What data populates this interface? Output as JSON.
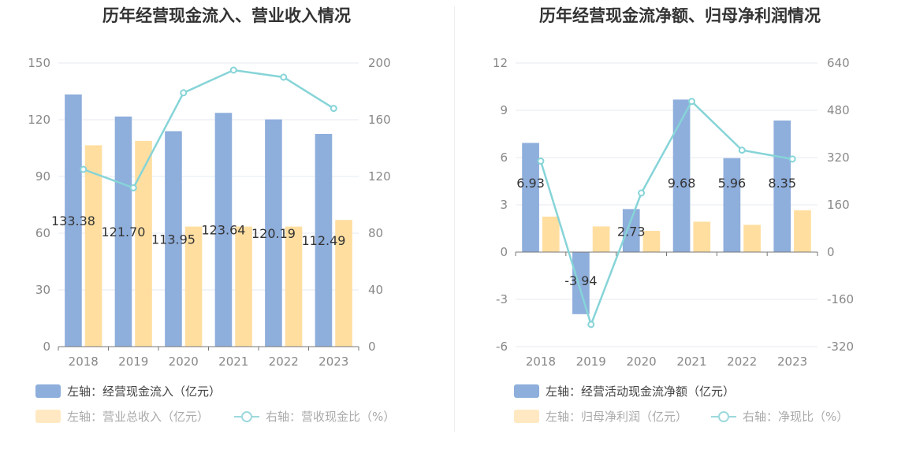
{
  "charts": [
    {
      "title": "历年经营现金流入、营业收入情况",
      "legend": {
        "series1": "左轴：经营现金流入（亿元）",
        "series2": "左轴：营业总收入（亿元）",
        "series3": "右轴：营收现金比（%）"
      }
    },
    {
      "title": "历年经营现金流净额、归母净利润情况",
      "legend": {
        "series1": "左轴：经营活动现金流净额（亿元）",
        "series2": "左轴：归母净利润（亿元）",
        "series3": "右轴：净现比（%）"
      }
    }
  ],
  "colors": {
    "bar_primary": "#8eaedc",
    "bar_secondary": "#ffdea0",
    "line": "#86d4d8"
  },
  "chart_data": [
    {
      "type": "bar",
      "title": "历年经营现金流入、营业收入情况",
      "categories": [
        "2018",
        "2019",
        "2020",
        "2021",
        "2022",
        "2023"
      ],
      "left_axis": {
        "min": 0,
        "max": 150,
        "ticks": [
          0,
          30,
          60,
          90,
          120,
          150
        ]
      },
      "right_axis": {
        "min": 0,
        "max": 200,
        "ticks": [
          0,
          40,
          80,
          120,
          160,
          200
        ]
      },
      "series": [
        {
          "name": "左轴：经营现金流入（亿元）",
          "axis": "left",
          "kind": "bar",
          "values": [
            133.38,
            121.7,
            113.95,
            123.64,
            120.19,
            112.49
          ],
          "labels": [
            "133.38",
            "121.70",
            "113.95",
            "123.64",
            "120.19",
            "112.49"
          ]
        },
        {
          "name": "左轴：营业总收入（亿元）",
          "axis": "left",
          "kind": "bar",
          "values": [
            106.5,
            108.8,
            63.5,
            63.5,
            63.5,
            67.0
          ]
        },
        {
          "name": "右轴：营收现金比（%）",
          "axis": "right",
          "kind": "line",
          "values": [
            125,
            112,
            179,
            195,
            190,
            168
          ]
        }
      ],
      "grid": true,
      "legend_position": "bottom-left"
    },
    {
      "type": "bar",
      "title": "历年经营现金流净额、归母净利润情况",
      "categories": [
        "2018",
        "2019",
        "2020",
        "2021",
        "2022",
        "2023"
      ],
      "left_axis": {
        "min": -6,
        "max": 12,
        "ticks": [
          -6,
          -3,
          0,
          3,
          6,
          9,
          12
        ]
      },
      "right_axis": {
        "min": -320,
        "max": 640,
        "ticks": [
          -320,
          -160,
          0,
          160,
          320,
          480,
          640
        ]
      },
      "series": [
        {
          "name": "左轴：经营活动现金流净额（亿元）",
          "axis": "left",
          "kind": "bar",
          "values": [
            6.93,
            -3.94,
            2.73,
            9.68,
            5.96,
            8.35
          ],
          "labels": [
            "6.93",
            "-3.94",
            "2.73",
            "9.68",
            "5.96",
            "8.35"
          ]
        },
        {
          "name": "左轴：归母净利润（亿元）",
          "axis": "left",
          "kind": "bar",
          "values": [
            2.25,
            1.63,
            1.35,
            1.93,
            1.73,
            2.65
          ]
        },
        {
          "name": "右轴：净现比（%）",
          "axis": "right",
          "kind": "line",
          "values": [
            308,
            -245,
            200,
            510,
            345,
            315
          ]
        }
      ],
      "grid": true,
      "legend_position": "bottom-left"
    }
  ]
}
